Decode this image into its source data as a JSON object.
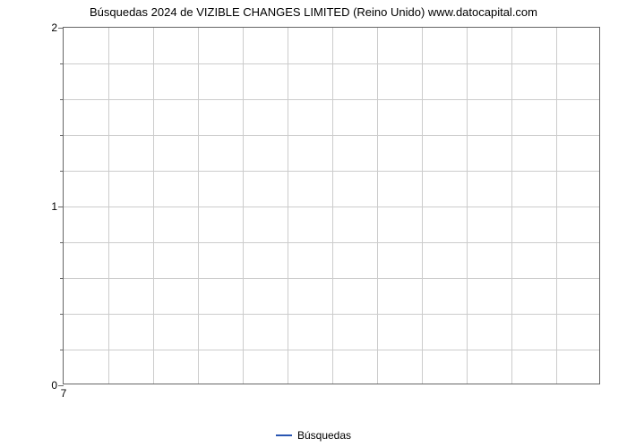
{
  "chart": {
    "type": "line",
    "title": "Búsquedas 2024 de VIZIBLE CHANGES LIMITED (Reino Unido) www.datocapital.com",
    "title_fontsize": 13,
    "title_color": "#000000",
    "background_color": "#ffffff",
    "plot_border_color": "#666666",
    "grid_color": "#cccccc",
    "y_axis": {
      "min": 0,
      "max": 2,
      "major_ticks": [
        0,
        1,
        2
      ],
      "minor_ticks": [
        0.2,
        0.4,
        0.6,
        0.8,
        1.2,
        1.4,
        1.6,
        1.8
      ],
      "grid_step": 0.2,
      "label_fontsize": 12
    },
    "x_axis": {
      "major_ticks": [
        7
      ],
      "grid_lines_count": 11,
      "label_fontsize": 12
    },
    "series": [
      {
        "name": "Búsquedas",
        "color": "#2956b2",
        "line_width": 2,
        "data": []
      }
    ],
    "legend": {
      "position": "bottom-center",
      "label": "Búsquedas",
      "fontsize": 12,
      "line_color": "#2956b2"
    }
  }
}
